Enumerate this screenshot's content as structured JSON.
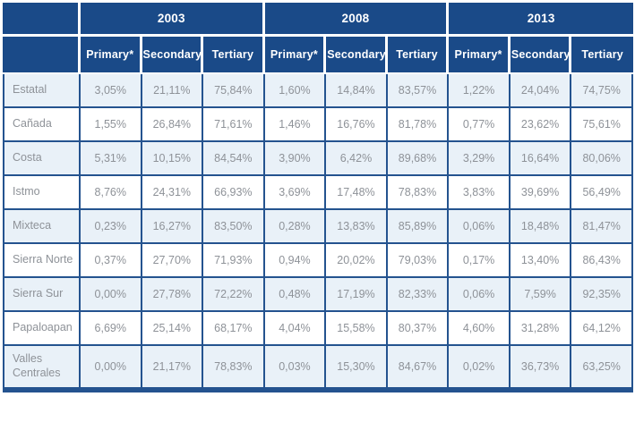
{
  "chart_data": {
    "type": "table",
    "corner_label": "",
    "year_groups": [
      {
        "year": "2003",
        "columns": [
          "Primary*",
          "Secondary",
          "Tertiary"
        ]
      },
      {
        "year": "2008",
        "columns": [
          "Primary*",
          "Secondary",
          "Tertiary"
        ]
      },
      {
        "year": "2013",
        "columns": [
          "Primary*",
          "Secondary",
          "Tertiary"
        ]
      }
    ],
    "rows": [
      {
        "region": "Estatal",
        "values": [
          "3,05%",
          "21,11%",
          "75,84%",
          "1,60%",
          "14,84%",
          "83,57%",
          "1,22%",
          "24,04%",
          "74,75%"
        ]
      },
      {
        "region": "Cañada",
        "values": [
          "1,55%",
          "26,84%",
          "71,61%",
          "1,46%",
          "16,76%",
          "81,78%",
          "0,77%",
          "23,62%",
          "75,61%"
        ]
      },
      {
        "region": "Costa",
        "values": [
          "5,31%",
          "10,15%",
          "84,54%",
          "3,90%",
          "6,42%",
          "89,68%",
          "3,29%",
          "16,64%",
          "80,06%"
        ]
      },
      {
        "region": "Istmo",
        "values": [
          "8,76%",
          "24,31%",
          "66,93%",
          "3,69%",
          "17,48%",
          "78,83%",
          "3,83%",
          "39,69%",
          "56,49%"
        ]
      },
      {
        "region": "Mixteca",
        "values": [
          "0,23%",
          "16,27%",
          "83,50%",
          "0,28%",
          "13,83%",
          "85,89%",
          "0,06%",
          "18,48%",
          "81,47%"
        ]
      },
      {
        "region": "Sierra Norte",
        "values": [
          "0,37%",
          "27,70%",
          "71,93%",
          "0,94%",
          "20,02%",
          "79,03%",
          "0,17%",
          "13,40%",
          "86,43%"
        ]
      },
      {
        "region": "Sierra Sur",
        "values": [
          "0,00%",
          "27,78%",
          "72,22%",
          "0,48%",
          "17,19%",
          "82,33%",
          "0,06%",
          "7,59%",
          "92,35%"
        ]
      },
      {
        "region": "Papaloapan",
        "values": [
          "6,69%",
          "25,14%",
          "68,17%",
          "4,04%",
          "15,58%",
          "80,37%",
          "4,60%",
          "31,28%",
          "64,12%"
        ]
      },
      {
        "region": "Valles Centrales",
        "values": [
          "0,00%",
          "21,17%",
          "78,83%",
          "0,03%",
          "15,30%",
          "84,67%",
          "0,02%",
          "36,73%",
          "63,25%"
        ]
      }
    ],
    "colors": {
      "header_bg": "#1a4a88",
      "grid_border": "#24538f",
      "row_alt_bg": "#e9f1f8",
      "row_bg": "#ffffff",
      "header_text": "#ffffff",
      "cell_text": "#8e9298"
    },
    "layout": {
      "legend_position": "none",
      "grid": true
    }
  }
}
